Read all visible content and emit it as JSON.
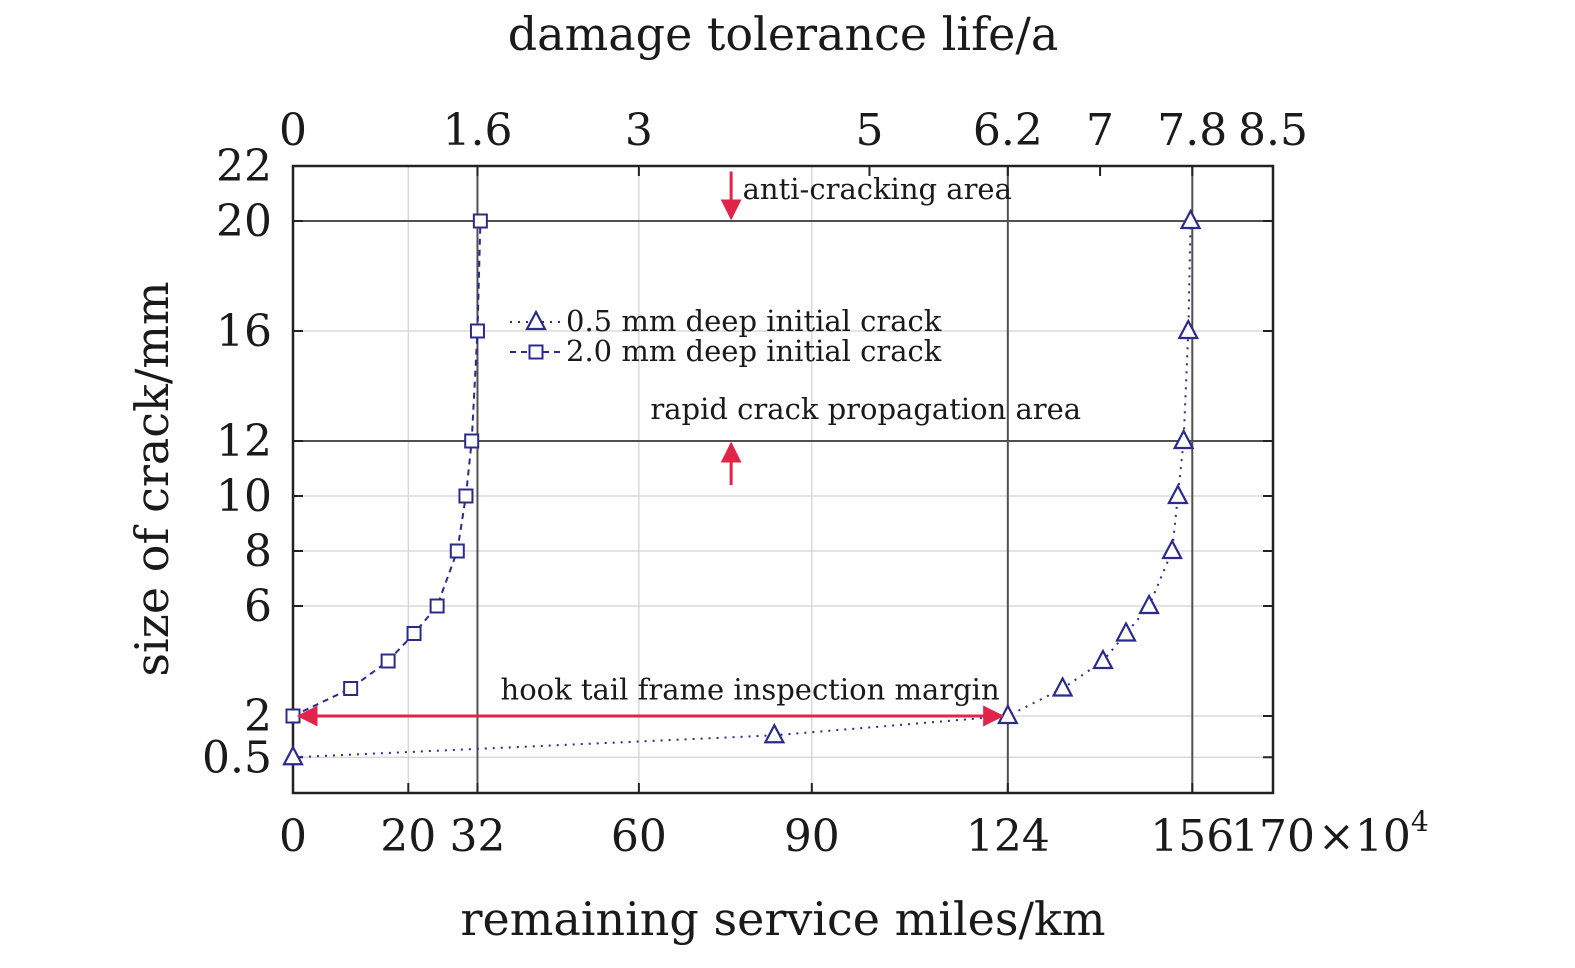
{
  "chart_data": {
    "type": "line",
    "title": "damage tolerance life/a",
    "xlabel": "remaining service miles/km",
    "x_multiplier_label": "×10",
    "x_multiplier_exponent": "4",
    "ylabel": "size of crack/mm",
    "xlim": [
      0,
      170
    ],
    "ylim": [
      -0.8,
      22
    ],
    "x_ticks": [
      0,
      20,
      32,
      60,
      90,
      124,
      156,
      170
    ],
    "x_tick_labels": [
      "0",
      "20",
      "32",
      "60",
      "90",
      "124",
      "156",
      "170"
    ],
    "top_ticks": [
      0,
      32,
      60,
      100,
      124,
      140,
      156,
      170
    ],
    "top_tick_labels": [
      "0",
      "1.6",
      "3",
      "5",
      "6.2",
      "7",
      "7.8",
      "8.5"
    ],
    "y_ticks": [
      0.5,
      2,
      6,
      8,
      10,
      12,
      16,
      20,
      22
    ],
    "y_tick_labels": [
      "0.5",
      "2",
      "6",
      "8",
      "10",
      "12",
      "16",
      "20",
      "22"
    ],
    "grid": true,
    "reference_lines": {
      "vertical": [
        32,
        124,
        156
      ],
      "horizontal": [
        12,
        20
      ]
    },
    "series": [
      {
        "name": "0.5 mm deep initial crack",
        "marker": "triangle",
        "line": "dotted",
        "color": "#2b2b8c",
        "points": [
          [
            0,
            0.5
          ],
          [
            83.5,
            1.3
          ],
          [
            124,
            2
          ],
          [
            133.5,
            3
          ],
          [
            140.5,
            4
          ],
          [
            144.5,
            5
          ],
          [
            148.5,
            6
          ],
          [
            152.5,
            8
          ],
          [
            153.5,
            10
          ],
          [
            154.5,
            12
          ],
          [
            155.3,
            16
          ],
          [
            155.7,
            20
          ]
        ]
      },
      {
        "name": "2.0 mm deep initial crack",
        "marker": "square",
        "line": "dashed",
        "color": "#2b2b8c",
        "points": [
          [
            0,
            2
          ],
          [
            10,
            3
          ],
          [
            16.5,
            4
          ],
          [
            21,
            5
          ],
          [
            25,
            6
          ],
          [
            28.5,
            8
          ],
          [
            30,
            10
          ],
          [
            31,
            12
          ],
          [
            32,
            16
          ],
          [
            32.5,
            20
          ]
        ]
      }
    ],
    "annotations": [
      {
        "text": "anti-cracking area",
        "x": 78,
        "y": 20.8
      },
      {
        "text": "rapid crack propagation area",
        "x": 62,
        "y": 12.8
      },
      {
        "text": "hook tail frame inspection margin",
        "x": 36,
        "y": 2.6
      }
    ],
    "arrows": [
      {
        "name": "anti-cracking-arrow",
        "from": [
          76,
          21.8
        ],
        "to": [
          76,
          20.1
        ]
      },
      {
        "name": "rapid-crack-arrow",
        "from": [
          76,
          10.4
        ],
        "to": [
          76,
          11.9
        ]
      },
      {
        "name": "inspection-margin-arrow",
        "from": [
          1,
          2
        ],
        "to": [
          123,
          2
        ],
        "double": true
      }
    ],
    "legend_position": "center",
    "colors": {
      "marker": "#2b2b8c",
      "arrow": "#e0244a",
      "reference": "#505050",
      "grid": "#d2d2d2"
    }
  }
}
